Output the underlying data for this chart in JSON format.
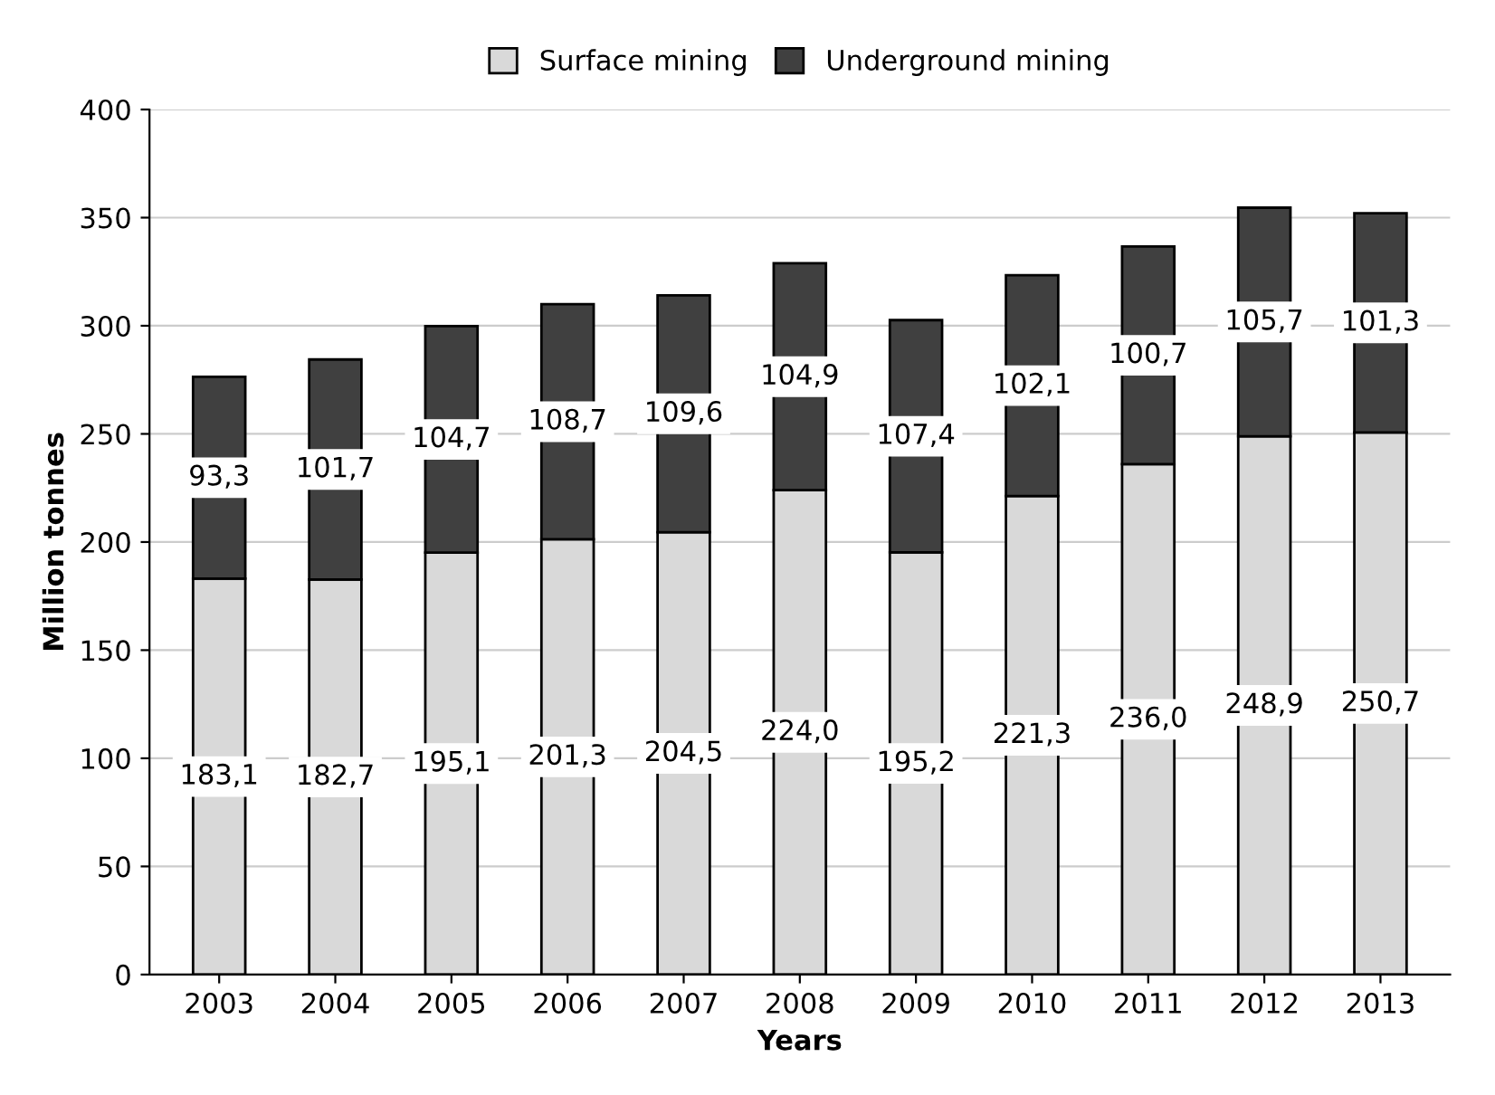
{
  "chart_data": {
    "type": "bar",
    "stacked": true,
    "xlabel": "Years",
    "ylabel": "Million tonnes",
    "categories": [
      "2003",
      "2004",
      "2005",
      "2006",
      "2007",
      "2008",
      "2009",
      "2010",
      "2011",
      "2012",
      "2013"
    ],
    "series": [
      {
        "name": "Surface mining",
        "color": "#d9d9d9",
        "values": [
          183.1,
          182.7,
          195.1,
          201.3,
          204.5,
          224.0,
          195.2,
          221.3,
          236.0,
          248.9,
          250.7
        ],
        "value_labels": [
          "183,1",
          "182,7",
          "195,1",
          "201,3",
          "204,5",
          "224,0",
          "195,2",
          "221,3",
          "236,0",
          "248,9",
          "250,7"
        ]
      },
      {
        "name": "Underground mining",
        "color": "#404040",
        "values": [
          93.3,
          101.7,
          104.7,
          108.7,
          109.6,
          104.9,
          107.4,
          102.1,
          100.7,
          105.7,
          101.3
        ],
        "value_labels": [
          "93,3",
          "101,7",
          "104,7",
          "108,7",
          "109,6",
          "104,9",
          "107,4",
          "102,1",
          "100,7",
          "105,7",
          "101,3"
        ]
      }
    ],
    "ylim": [
      0,
      400
    ],
    "yticks": [
      0,
      50,
      100,
      150,
      200,
      250,
      300,
      350,
      400
    ],
    "grid": "y",
    "legend": "top"
  }
}
